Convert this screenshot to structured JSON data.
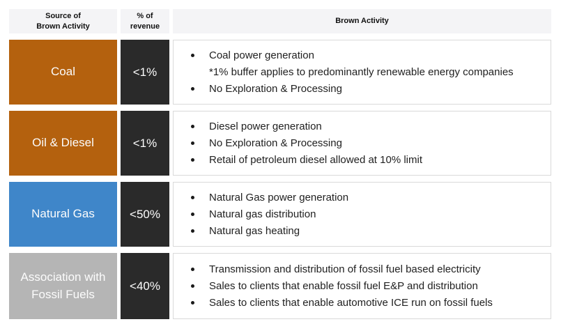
{
  "theme": {
    "header_bg": "#f4f4f6",
    "header_text": "#111111",
    "revenue_bg": "#2a2a2a",
    "cell_text_light": "#fcfcfc",
    "body_text": "#212121",
    "box_border": "#d9d9d9",
    "box_bg": "#ffffff",
    "coal_color": "#b4610e",
    "oil_diesel_color": "#b4610e",
    "natural_gas_color": "#3f86c9",
    "fossil_association_color": "#b5b5b5"
  },
  "header": {
    "source_line1": "Source of",
    "source_line2": "Brown Activity",
    "revenue_line1": "% of",
    "revenue_line2": "revenue",
    "activity": "Brown Activity"
  },
  "rows": [
    {
      "source": "Coal",
      "revenue": "<1%",
      "color": "#b4610e",
      "items": [
        {
          "text": "Coal power generation"
        },
        {
          "text": "*1% buffer applies to predominantly renewable energy companies"
        },
        {
          "text": "No Exploration & Processing"
        }
      ]
    },
    {
      "source": "Oil & Diesel",
      "revenue": "<1%",
      "color": "#b4610e",
      "items": [
        {
          "text": "Diesel power generation"
        },
        {
          "text": "No Exploration & Processing"
        },
        {
          "text": "Retail of petroleum diesel allowed at 10% limit"
        }
      ]
    },
    {
      "source": "Natural Gas",
      "revenue": "<50%",
      "color": "#3f86c9",
      "items": [
        {
          "text": "Natural Gas power generation"
        },
        {
          "text": "Natural gas distribution"
        },
        {
          "text": "Natural gas heating"
        }
      ]
    },
    {
      "source": "Association with Fossil Fuels",
      "revenue": "<40%",
      "color": "#b5b5b5",
      "items": [
        {
          "text": "Transmission and distribution of fossil fuel based electricity"
        },
        {
          "text": "Sales to clients that enable fossil fuel E&P and distribution"
        },
        {
          "text": "Sales to clients that enable automotive ICE run on fossil fuels"
        }
      ]
    }
  ]
}
